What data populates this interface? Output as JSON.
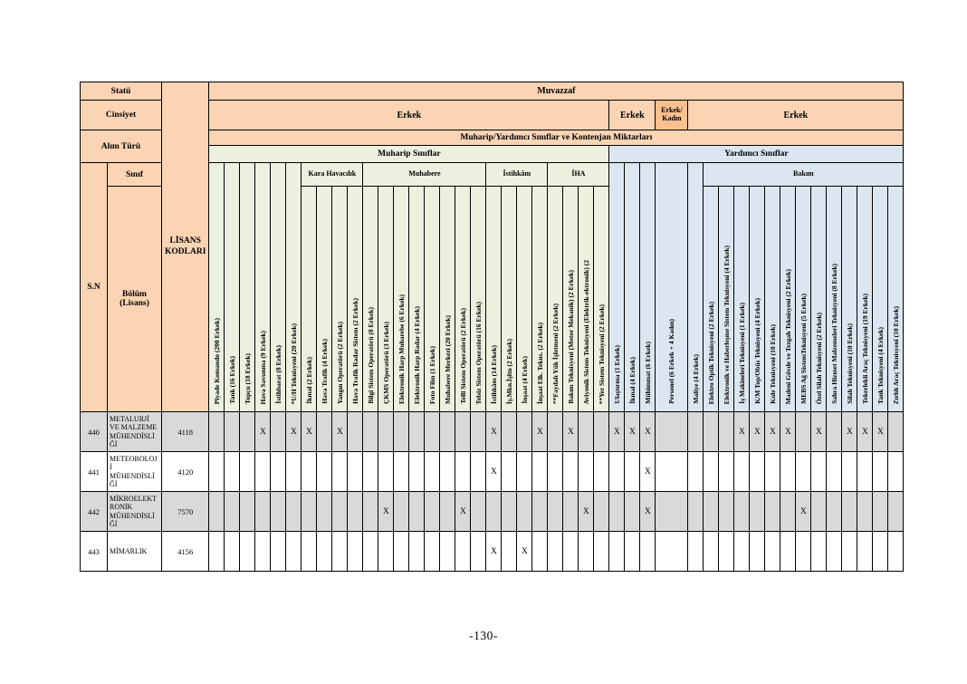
{
  "page": {
    "number_label": "-130-"
  },
  "colors": {
    "header_orange": "#FBD4B4",
    "header_orange_dark": "#FAC090",
    "muharip_green": "#EBF1DE",
    "yardimci_blue": "#DCE6F1",
    "row_shaded": "#D9D9D9"
  },
  "table": {
    "left_headers": {
      "statu": "Statü",
      "cinsiyet": "Cinsiyet",
      "alim_turu": "Alım Türü",
      "sinif": "Sınıf",
      "sn": "S.N",
      "bolum": "Bölüm (Lisans)",
      "lisans_kodlari": "LİSANS KODLARI"
    },
    "muvazzaf": "Muvazzaf",
    "gender_row": [
      {
        "label": "Erkek",
        "span": 26,
        "dark": false
      },
      {
        "label": "Erkek",
        "span": 3,
        "dark": false
      },
      {
        "label": "Erkek/ Kadın",
        "span": 1,
        "dark": true
      },
      {
        "label": "Erkek",
        "span": 14,
        "dark": false
      }
    ],
    "quota_band": "Muharip/Yardımcı Sınıflar ve Kontenjan Miktarları",
    "class_bands": [
      {
        "label": "Muharip Sınıflar",
        "span": 26,
        "section": "m"
      },
      {
        "label": "Yardımcı Sınıflar",
        "span": 18,
        "section": "y"
      }
    ],
    "columns": [
      {
        "label": "Piyade Komando (200 Erkek)",
        "section": "m",
        "group": null
      },
      {
        "label": "Tank (16 Erkek)",
        "section": "m",
        "group": null
      },
      {
        "label": "Topçu (18 Erkek)",
        "section": "m",
        "group": null
      },
      {
        "label": "Hava Savunma (9 Erkek)",
        "section": "m",
        "group": null
      },
      {
        "label": "İstihbarat (8 Erkek)",
        "section": "m",
        "group": null
      },
      {
        "label": "*U/H Teknisyeni (20 Erkek)",
        "section": "m",
        "group": null
      },
      {
        "label": "İkmal (2 Erkek)",
        "section": "m",
        "group": "Kara Havacılık"
      },
      {
        "label": "Hava Trafik (4 Erkek)",
        "section": "m",
        "group": "Kara Havacılık"
      },
      {
        "label": "Yangın Operatörü (2 Erkek)",
        "section": "m",
        "group": "Kara Havacılık"
      },
      {
        "label": "Hava Trafik Radar Sistem (2 Erkek)",
        "section": "m",
        "group": "Kara Havacılık"
      },
      {
        "label": "Bilgi Sistem Operatörü (8 Erkek)",
        "section": "m",
        "group": "Muhabere"
      },
      {
        "label": "ÇKMS Operatörü (3 Erkek)",
        "section": "m",
        "group": "Muhabere"
      },
      {
        "label": "Elektronik Harp Muharebe (6 Erkek)",
        "section": "m",
        "group": "Muhabere"
      },
      {
        "label": "Elektronik Harp Radar (4 Erkek)",
        "section": "m",
        "group": "Muhabere"
      },
      {
        "label": "Foto Film (1 Erkek)",
        "section": "m",
        "group": "Muhabere"
      },
      {
        "label": "Muhabere Merkezi (20 Erkek)",
        "section": "m",
        "group": "Muhabere"
      },
      {
        "label": "Telli Sistem Operatörü (2 Erkek)",
        "section": "m",
        "group": "Muhabere"
      },
      {
        "label": "Telsiz Sistem Operatörü (16 Erkek)",
        "section": "m",
        "group": "Muhabere"
      },
      {
        "label": "İstihkâm (14 Erkek)",
        "section": "m",
        "group": "İstihkâm"
      },
      {
        "label": "İş.Mkn.İşltn (2 Erkek)",
        "section": "m",
        "group": "İstihkâm"
      },
      {
        "label": "İnşaat (4 Erkek)",
        "section": "m",
        "group": "İstihkâm"
      },
      {
        "label": "İnşaat Elk. Tekns. (2 Erkek)",
        "section": "m",
        "group": "İstihkâm"
      },
      {
        "label": "**Faydalı Yük İşletmeni (2 Erkek)",
        "section": "m",
        "group": "İHA"
      },
      {
        "label": "Bakım Teknisyeni (Motor Mekanik) (2 Erkek)",
        "section": "m",
        "group": "İHA"
      },
      {
        "label": "Aviyonik Sistem Teknisyeni (Elektrik-ektronik) (2",
        "section": "m",
        "group": "İHA"
      },
      {
        "label": "**Yer Sistem Teknisyeni (2 Erkek)",
        "section": "m",
        "group": "İHA"
      },
      {
        "label": "Ulaştırma (1 Erkek)",
        "section": "y",
        "group": null
      },
      {
        "label": "İkmal (4 Erkek)",
        "section": "y",
        "group": null
      },
      {
        "label": "Mühimmat (6 Erkek)",
        "section": "y",
        "group": null
      },
      {
        "label": "Personel (6 Erkek + 4 Kadın)",
        "section": "y",
        "group": null,
        "wide": true
      },
      {
        "label": "Maliye (4 Erkek)",
        "section": "y",
        "group": null
      },
      {
        "label": "Elektro Optik Teknisyeni (2 Erkek)",
        "section": "y",
        "group": "Bakım"
      },
      {
        "label": "Elektronik ve Haberleşme Sistem Teknisyeni (4 Erkek)",
        "section": "y",
        "group": "Bakım"
      },
      {
        "label": "İş Makineleri Teknisyeni (1 Erkek)",
        "section": "y",
        "group": "Bakım"
      },
      {
        "label": "K/M Top/Obüs Teknisyeni (4 Erkek)",
        "section": "y",
        "group": "Bakım"
      },
      {
        "label": "Kule Teknisyeni (10 Erkek)",
        "section": "y",
        "group": "Bakım"
      },
      {
        "label": "Madeni Gövde ve Tezgah Teknisyeni (2 Erkek)",
        "section": "y",
        "group": "Bakım"
      },
      {
        "label": "MEBS Ağ SistemTeknisyeni (5 Erkek)",
        "section": "y",
        "group": "Bakım"
      },
      {
        "label": "Özel Silah Teknisyeni (2 Erkek)",
        "section": "y",
        "group": "Bakım"
      },
      {
        "label": "Sahra Hizmet Malzemeleri Teknisyeni (8 Erkek)",
        "section": "y",
        "group": "Bakım"
      },
      {
        "label": "Silah Teknisyeni (10 Erkek)",
        "section": "y",
        "group": "Bakım"
      },
      {
        "label": "Tekerlekli Araç Teknisyeni (19 Erkek)",
        "section": "y",
        "group": "Bakım"
      },
      {
        "label": "Tank Teknisyeni (4 Erkek)",
        "section": "y",
        "group": "Bakım"
      },
      {
        "label": "Zırhlı Araç Teknisyeni (10 Erkek)",
        "section": "y",
        "group": "Bakım"
      }
    ],
    "x_mark": "X",
    "rows": [
      {
        "sn": "440",
        "bolum": "METALURJİ VE MALZEME MÜHENDİSLİĞİ",
        "kod": "4118",
        "shaded": true,
        "x": [
          3,
          5,
          6,
          8,
          18,
          21,
          23,
          26,
          27,
          28,
          33,
          34,
          35,
          36,
          38,
          40,
          41,
          42
        ]
      },
      {
        "sn": "441",
        "bolum": "METEOROLOJİ MÜHENDİSLİĞİ",
        "kod": "4120",
        "shaded": false,
        "x": [
          18,
          28
        ]
      },
      {
        "sn": "442",
        "bolum": "MİKROELEKTRONİK MÜHENDİSLİĞİ",
        "kod": "7570",
        "shaded": true,
        "x": [
          11,
          16,
          24,
          28,
          37
        ]
      },
      {
        "sn": "443",
        "bolum": "MİMARLIK",
        "kod": "4156",
        "shaded": false,
        "x": [
          18,
          20
        ]
      }
    ]
  }
}
